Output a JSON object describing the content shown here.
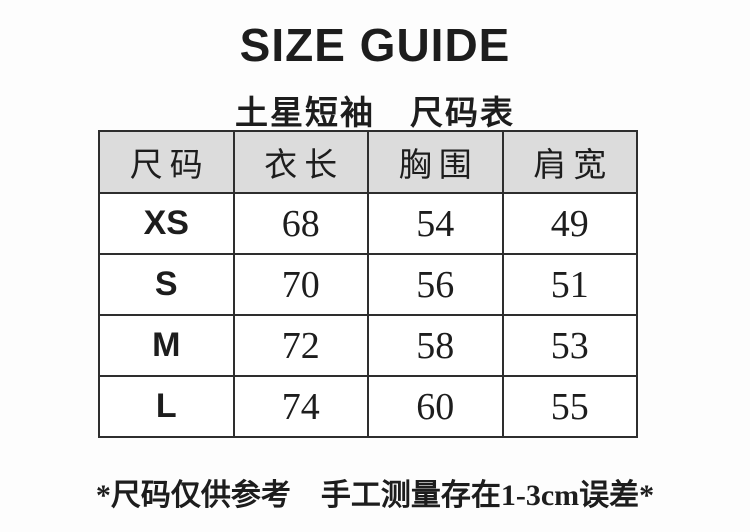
{
  "page": {
    "title": "SIZE GUIDE",
    "subtitle": "土星短袖　尺码表",
    "footnote": "*尺码仅供参考　手工测量存在1-3cm误差*"
  },
  "table": {
    "headers": [
      "尺码",
      "衣长",
      "胸围",
      "肩宽"
    ],
    "rows": [
      [
        "XS",
        "68",
        "54",
        "49"
      ],
      [
        "S",
        "70",
        "56",
        "51"
      ],
      [
        "M",
        "72",
        "58",
        "53"
      ],
      [
        "L",
        "74",
        "60",
        "55"
      ]
    ]
  },
  "chart_data": {
    "type": "table",
    "title": "SIZE GUIDE 土星短袖 尺码表",
    "columns": [
      "尺码",
      "衣长",
      "胸围",
      "肩宽"
    ],
    "rows": [
      [
        "XS",
        68,
        54,
        49
      ],
      [
        "S",
        70,
        56,
        51
      ],
      [
        "M",
        72,
        58,
        53
      ],
      [
        "L",
        74,
        60,
        55
      ]
    ],
    "note": "*尺码仅供参考　手工测量存在1-3cm误差*"
  },
  "colors": {
    "header_bg": "#dcdcdc",
    "border": "#2e2e2e",
    "text": "#1d1d1d",
    "background": "#fdfdfd"
  }
}
